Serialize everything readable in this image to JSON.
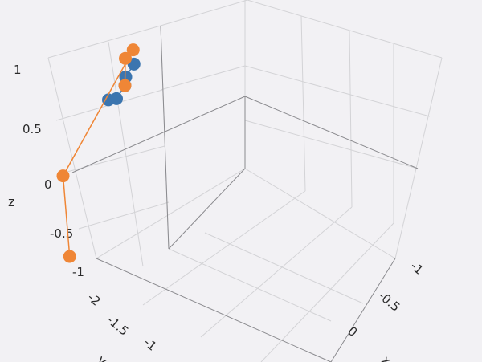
{
  "chart_data": {
    "type": "scatter",
    "projection": "3d",
    "axes": {
      "x": {
        "label": "x",
        "ticks": [
          "-1",
          "-0.5",
          "0"
        ],
        "range": [
          -1,
          0
        ]
      },
      "y": {
        "label": "y",
        "ticks": [
          "-2",
          "-1.5",
          "-1"
        ],
        "range": [
          -2,
          -1
        ]
      },
      "z": {
        "label": "z",
        "ticks": [
          "1",
          "0.5",
          "0",
          "-0.5",
          "-1"
        ],
        "range": [
          -1,
          1
        ]
      }
    },
    "grid": true,
    "series": [
      {
        "color": "#3b75af",
        "mode": "lines+markers",
        "points": [
          {
            "x": -0.2,
            "y": -1.7,
            "z": 0.55
          },
          {
            "x": -0.3,
            "y": -1.55,
            "z": 0.3
          },
          {
            "x": -0.5,
            "y": -1.3,
            "z": 0.0
          },
          {
            "x": -0.7,
            "y": -1.1,
            "z": -0.3
          },
          {
            "x": -0.85,
            "y": -0.9,
            "z": -0.5
          }
        ]
      },
      {
        "color": "#ef8636",
        "mode": "lines+markers",
        "points": [
          {
            "x": -0.5,
            "y": -1.3,
            "z": 0.0
          },
          {
            "x": -0.6,
            "y": -1.2,
            "z": 0.15
          },
          {
            "x": -0.65,
            "y": -1.1,
            "z": 0.1
          },
          {
            "x": -0.3,
            "y": -1.9,
            "z": -0.3
          },
          {
            "x": -0.05,
            "y": -2.1,
            "z": -0.9
          }
        ]
      }
    ]
  }
}
